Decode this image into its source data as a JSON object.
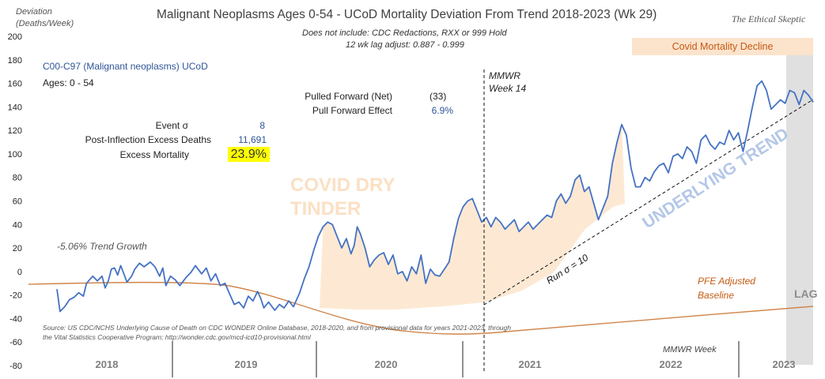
{
  "chart_data": {
    "type": "line",
    "title": "Malignant Neoplasms Ages 0-54 - UCoD Mortality Deviation From Trend  2018-2023 (Wk 29)",
    "subtitle_lines": [
      "Does not include: CDC Redactions,  RXX or 999 Hold",
      "12 wk lag adjust: 0.887 - 0.999"
    ],
    "brand": "The Ethical Skeptic",
    "ylabel": "Deviation (Deaths/Week)",
    "xlabel": "MMWR Week",
    "ylim": [
      -80,
      200
    ],
    "y_ticks": [
      "200",
      "180",
      "160",
      "140",
      "120",
      "100",
      "80",
      "60",
      "40",
      "20",
      "0",
      "-20",
      "-40",
      "-60",
      "-80"
    ],
    "x_categories": [
      "2018",
      "2019",
      "2020",
      "2021",
      "2022",
      "2023"
    ],
    "series_label": "C00-C97 (Malignant neoplasms) UCoD",
    "ages_label": "Ages: 0 - 54",
    "stats": [
      {
        "label": "Event σ",
        "value": "8"
      },
      {
        "label": "Post-Inflection Excess Deaths",
        "value": "11,691"
      },
      {
        "label": "Excess Mortality",
        "value": "23.9%"
      }
    ],
    "pull_forward": [
      {
        "label": "Pulled Forward (Net)",
        "value": "(33)"
      },
      {
        "label": "Pull Forward Effect",
        "value": "6.9%"
      }
    ],
    "annotations": {
      "mmwr_week14": "MMWR Week 14",
      "trend_growth": "-5.06% Trend Growth",
      "pfe_baseline": "PFE Adjusted Baseline",
      "run_sigma": "Run σ = 10",
      "underlying_trend": "UNDERLYING TREND",
      "covid_dry_tinder": "COVID DRY TINDER",
      "covid_decline": "Covid Mortality Decline",
      "lag": "LAG"
    },
    "source_note": "Source: US CDC/NCHS Underlying Cause of Death on CDC WONDER Online Database, 2018-2020, and from provisional data for years 2021-2023, through the Vital Statistics Cooperative Program; http://wonder.cdc.gov/mcd-icd10-provisional.html",
    "series": [
      {
        "x": [
          0,
          2,
          4,
          6,
          8,
          10,
          12,
          14,
          16,
          18,
          20,
          22,
          24,
          26,
          28,
          30,
          32,
          34,
          36,
          38,
          40,
          42,
          44,
          46,
          48,
          50,
          52,
          54,
          56,
          58,
          60,
          62,
          64,
          66,
          68,
          70,
          72,
          74,
          76,
          78,
          80,
          82,
          84,
          86,
          88,
          90,
          92,
          94,
          96,
          98,
          100,
          102,
          104,
          106,
          108,
          110,
          112,
          114,
          116,
          118,
          120,
          122,
          124,
          126,
          128,
          130,
          132,
          134,
          136,
          138,
          140,
          142,
          144,
          146,
          148,
          150,
          152,
          154,
          156,
          158,
          160,
          162,
          164,
          166,
          168,
          170,
          172,
          174,
          176,
          178,
          180,
          182,
          184,
          186,
          188,
          190,
          192,
          194,
          196,
          198,
          200,
          202,
          204,
          206,
          208,
          210,
          212,
          214,
          216,
          218,
          220,
          222,
          224,
          226,
          228,
          230,
          232,
          234,
          236,
          238,
          240,
          242,
          244,
          246,
          248,
          250,
          252,
          254,
          256,
          258,
          260,
          262,
          264,
          266,
          268,
          270,
          272,
          274,
          276,
          278,
          280,
          282,
          284,
          286,
          288,
          290,
          292,
          294,
          296,
          298,
          300,
          302,
          304,
          306,
          308,
          310,
          312,
          314,
          316,
          318,
          320,
          322,
          324,
          326,
          328,
          330,
          332,
          334,
          336,
          338,
          340,
          342,
          344,
          346,
          348,
          350,
          352,
          354,
          356,
          358,
          360,
          362,
          364,
          366,
          368,
          370,
          372,
          374,
          376,
          378,
          380,
          382,
          384,
          386,
          388,
          390,
          392,
          394,
          396,
          398,
          400,
          402,
          404,
          406,
          408,
          410,
          412,
          414,
          416,
          418,
          420,
          422,
          424,
          426,
          428,
          430,
          432,
          434,
          436,
          438,
          440,
          442,
          444,
          446,
          448,
          450,
          452,
          454,
          456,
          458,
          460,
          462,
          464,
          466,
          468,
          470,
          472,
          474,
          476,
          478,
          480,
          482,
          484,
          486,
          488,
          490,
          492,
          494,
          496,
          498,
          500,
          502,
          504,
          506,
          508,
          510,
          512,
          514,
          516,
          518,
          520,
          522,
          524,
          526,
          528,
          530,
          532,
          534,
          536,
          538,
          540,
          542,
          544,
          546,
          548,
          550,
          552,
          554,
          556,
          558,
          560,
          562,
          564,
          566,
          568,
          570,
          572,
          574,
          576,
          578,
          580,
          582,
          584,
          586,
          588,
          590,
          592,
          594,
          596,
          598,
          600,
          602,
          604,
          606,
          608,
          610,
          612,
          614,
          616,
          618,
          620,
          622,
          624,
          626,
          628,
          630,
          632,
          634,
          636,
          638,
          640,
          642,
          644,
          646,
          648,
          650,
          652,
          654,
          656,
          658,
          660,
          662,
          664,
          666,
          668,
          670,
          672,
          674,
          676,
          678,
          680,
          682,
          684,
          686,
          688,
          690,
          692,
          694,
          696,
          698,
          700,
          702,
          704,
          706,
          708,
          710,
          712,
          714,
          716,
          718,
          720,
          722,
          724,
          726,
          728,
          730,
          732,
          734,
          736,
          738,
          740,
          742,
          744,
          746,
          748,
          750,
          752,
          754,
          756,
          758,
          760,
          762,
          764,
          766,
          768,
          770,
          772,
          774,
          776,
          778,
          780,
          782,
          784,
          786,
          788,
          790,
          792,
          794,
          796,
          798,
          800,
          802,
          804,
          806,
          808,
          810,
          812,
          814,
          816,
          818,
          820,
          822,
          824,
          826,
          828,
          830,
          832,
          834,
          836,
          838,
          840,
          842,
          844,
          846,
          848,
          850,
          852,
          854,
          856,
          858,
          860,
          862,
          864,
          866,
          868,
          870,
          872,
          874,
          876,
          878,
          880,
          882,
          884,
          886,
          888,
          890,
          892,
          894,
          896,
          898,
          900,
          902,
          904,
          906,
          908,
          910,
          912,
          914,
          916,
          918,
          920,
          922,
          924,
          926,
          928,
          930,
          932,
          934,
          936,
          938,
          940,
          942,
          944,
          946,
          948,
          950,
          952,
          954,
          956,
          958,
          960,
          962,
          964,
          966,
          968,
          970,
          972
        ],
        "y_known": [
          [
            0,
            -15
          ],
          [
            4,
            -34
          ],
          [
            10,
            -30
          ],
          [
            16,
            -24
          ],
          [
            22,
            -22
          ],
          [
            28,
            -18
          ],
          [
            34,
            -21
          ],
          [
            38,
            -10
          ],
          [
            46,
            -4
          ],
          [
            52,
            -8
          ],
          [
            58,
            -4
          ],
          [
            62,
            -14
          ],
          [
            66,
            -8
          ],
          [
            70,
            2
          ],
          [
            74,
            3
          ],
          [
            78,
            -3
          ],
          [
            82,
            5
          ],
          [
            86,
            -2
          ],
          [
            90,
            -9
          ],
          [
            96,
            -4
          ],
          [
            100,
            2
          ],
          [
            106,
            7
          ],
          [
            112,
            4
          ],
          [
            120,
            8
          ],
          [
            126,
            4
          ],
          [
            132,
            -4
          ],
          [
            136,
            3
          ],
          [
            140,
            -12
          ],
          [
            146,
            -4
          ],
          [
            152,
            -7
          ],
          [
            158,
            -12
          ],
          [
            166,
            -5
          ],
          [
            172,
            -1
          ],
          [
            178,
            5
          ],
          [
            186,
            -2
          ],
          [
            192,
            3
          ],
          [
            198,
            -8
          ],
          [
            204,
            -2
          ],
          [
            210,
            -12
          ],
          [
            216,
            -10
          ],
          [
            222,
            -19
          ],
          [
            228,
            -28
          ],
          [
            234,
            -26
          ],
          [
            240,
            -31
          ],
          [
            246,
            -21
          ],
          [
            252,
            -25
          ],
          [
            258,
            -17
          ],
          [
            262,
            -23
          ],
          [
            266,
            -31
          ],
          [
            272,
            -26
          ],
          [
            280,
            -33
          ],
          [
            286,
            -28
          ],
          [
            292,
            -31
          ],
          [
            298,
            -25
          ],
          [
            304,
            -30
          ],
          [
            312,
            -18
          ],
          [
            318,
            -6
          ],
          [
            324,
            4
          ],
          [
            330,
            18
          ],
          [
            336,
            30
          ],
          [
            342,
            38
          ],
          [
            348,
            42
          ],
          [
            354,
            40
          ],
          [
            360,
            30
          ],
          [
            366,
            20
          ],
          [
            372,
            28
          ],
          [
            378,
            15
          ],
          [
            382,
            22
          ],
          [
            386,
            38
          ],
          [
            390,
            32
          ],
          [
            396,
            20
          ],
          [
            402,
            4
          ],
          [
            408,
            10
          ],
          [
            414,
            14
          ],
          [
            420,
            16
          ],
          [
            426,
            6
          ],
          [
            432,
            14
          ],
          [
            438,
            -2
          ],
          [
            444,
            0
          ],
          [
            450,
            -8
          ],
          [
            456,
            4
          ],
          [
            462,
            -2
          ],
          [
            468,
            14
          ],
          [
            474,
            -10
          ],
          [
            480,
            2
          ],
          [
            486,
            -3
          ],
          [
            492,
            -4
          ],
          [
            498,
            2
          ],
          [
            504,
            8
          ],
          [
            510,
            28
          ],
          [
            516,
            45
          ],
          [
            522,
            55
          ],
          [
            528,
            60
          ],
          [
            534,
            62
          ],
          [
            540,
            52
          ],
          [
            546,
            42
          ],
          [
            552,
            46
          ],
          [
            558,
            38
          ],
          [
            564,
            46
          ],
          [
            570,
            42
          ],
          [
            576,
            36
          ],
          [
            582,
            40
          ],
          [
            588,
            44
          ],
          [
            594,
            34
          ],
          [
            600,
            38
          ],
          [
            606,
            42
          ],
          [
            612,
            36
          ],
          [
            618,
            40
          ],
          [
            624,
            44
          ],
          [
            630,
            48
          ],
          [
            636,
            46
          ],
          [
            642,
            60
          ],
          [
            648,
            66
          ],
          [
            654,
            58
          ],
          [
            660,
            64
          ],
          [
            666,
            78
          ],
          [
            672,
            82
          ],
          [
            678,
            68
          ],
          [
            684,
            72
          ],
          [
            690,
            58
          ],
          [
            696,
            44
          ],
          [
            702,
            54
          ],
          [
            708,
            64
          ],
          [
            714,
            92
          ],
          [
            720,
            110
          ],
          [
            726,
            125
          ],
          [
            732,
            116
          ],
          [
            738,
            88
          ],
          [
            744,
            72
          ],
          [
            750,
            72
          ],
          [
            756,
            80
          ],
          [
            762,
            77
          ],
          [
            768,
            85
          ],
          [
            774,
            90
          ],
          [
            780,
            92
          ],
          [
            786,
            84
          ],
          [
            792,
            98
          ],
          [
            798,
            100
          ],
          [
            804,
            96
          ],
          [
            810,
            106
          ],
          [
            816,
            102
          ],
          [
            822,
            92
          ],
          [
            828,
            112
          ],
          [
            834,
            116
          ],
          [
            840,
            108
          ],
          [
            846,
            104
          ],
          [
            852,
            110
          ],
          [
            858,
            108
          ],
          [
            864,
            120
          ],
          [
            870,
            112
          ],
          [
            876,
            118
          ],
          [
            882,
            102
          ],
          [
            888,
            120
          ],
          [
            894,
            140
          ],
          [
            900,
            158
          ],
          [
            906,
            162
          ],
          [
            912,
            154
          ],
          [
            918,
            138
          ],
          [
            924,
            142
          ],
          [
            930,
            146
          ],
          [
            936,
            143
          ],
          [
            942,
            154
          ],
          [
            948,
            152
          ],
          [
            954,
            142
          ],
          [
            960,
            154
          ],
          [
            966,
            150
          ],
          [
            972,
            144
          ]
        ]
      }
    ]
  }
}
